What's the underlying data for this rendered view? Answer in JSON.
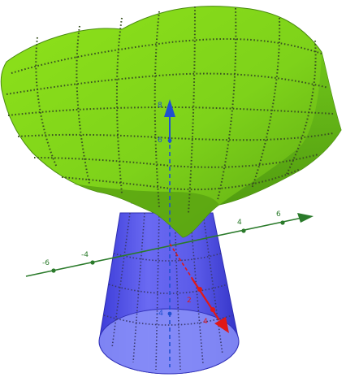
{
  "colors": {
    "background": "#ffffff",
    "surface_light": "#8ee21a",
    "surface_mid": "#6fc41a",
    "surface_dark": "#4f9a10",
    "surface_grid": "#3a5220",
    "cone_light": "#9aa8ff",
    "cone_mid": "#6a6af2",
    "cone_dark": "#3c3cd8",
    "cone_grid": "#3a3a70",
    "axis_y": "#2a7a2a",
    "axis_z": "#2050d0",
    "axis_x": "#e01818"
  },
  "axes": {
    "y_ticks": [
      "-6",
      "-4",
      "4",
      "6"
    ],
    "z_ticks": [
      "8",
      "6",
      "-4"
    ],
    "x_ticks": [
      "2",
      "4"
    ]
  },
  "icons": {
    "y_arrow": "green-arrow-icon",
    "z_arrow": "blue-arrow-icon",
    "x_arrow": "red-arrow-icon"
  }
}
